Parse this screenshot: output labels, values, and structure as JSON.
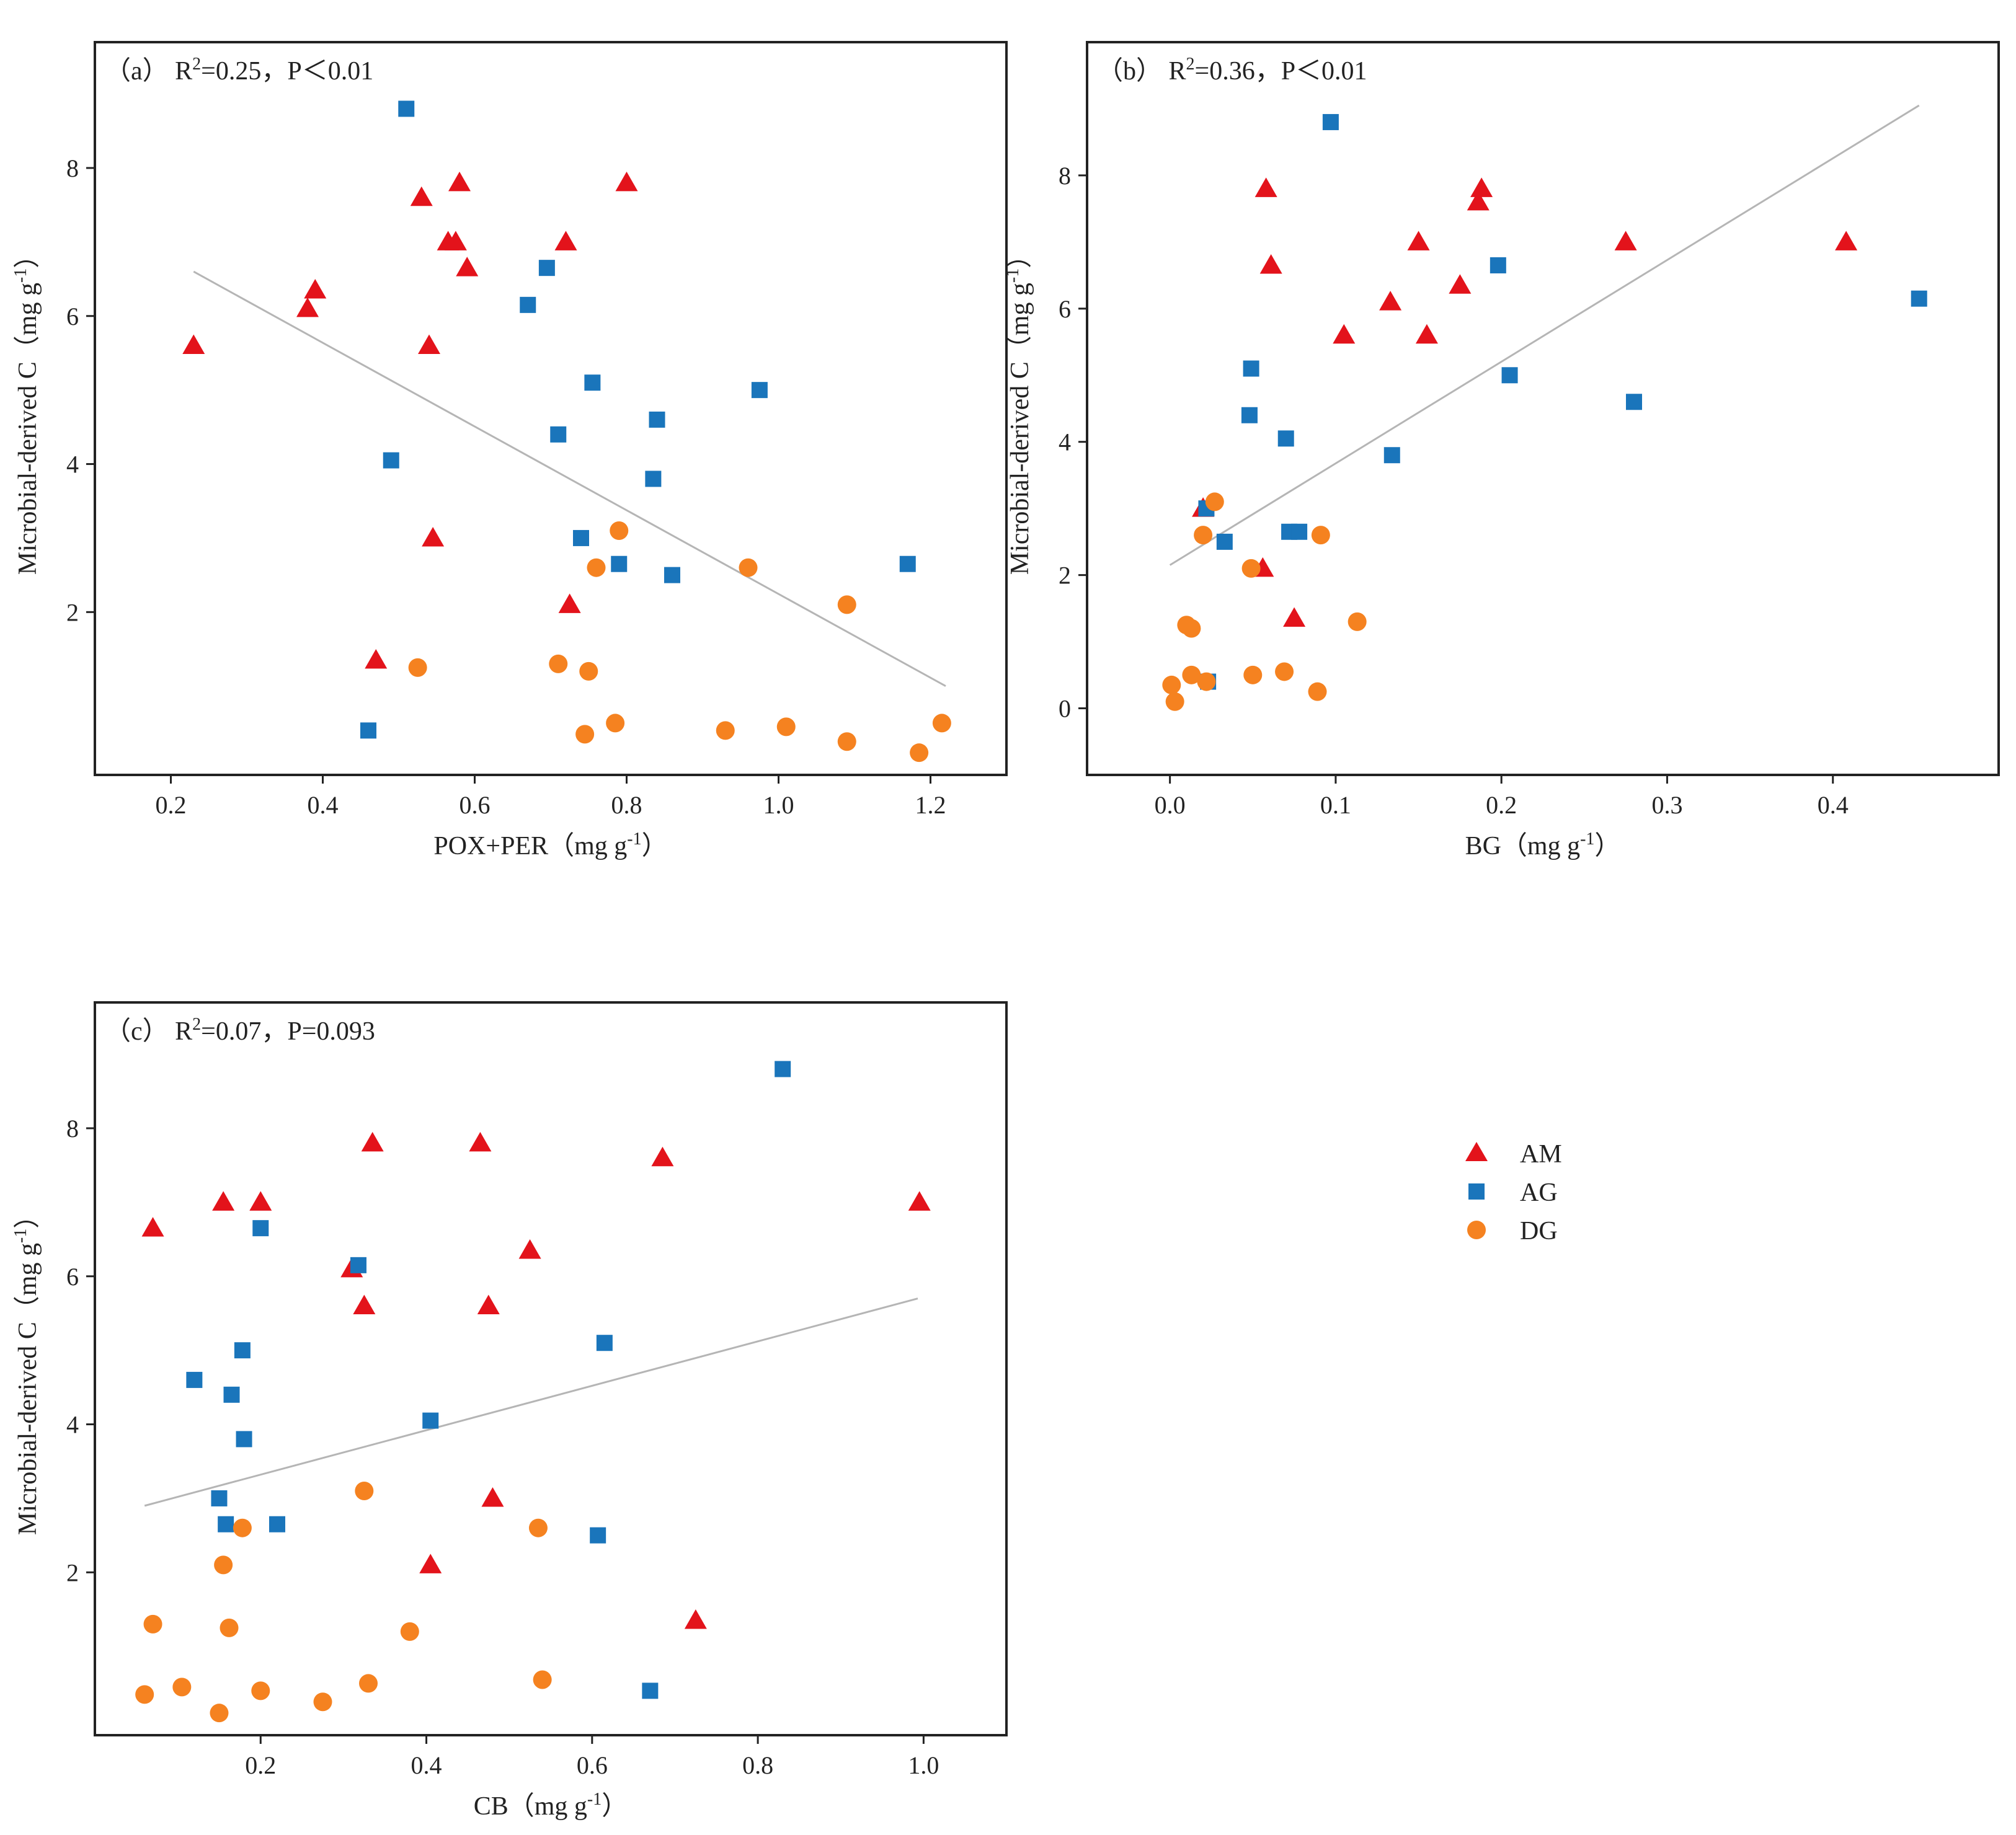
{
  "colors": {
    "AM": "#e3131b",
    "AG": "#1a75bb",
    "DG": "#f58220",
    "fit": "#b5b5b5",
    "frame": "#222222"
  },
  "legend": [
    {
      "key": "AM",
      "label": "AM",
      "marker": "triangle"
    },
    {
      "key": "AG",
      "label": "AG",
      "marker": "square"
    },
    {
      "key": "DG",
      "label": "DG",
      "marker": "circle"
    }
  ],
  "chart_data": [
    {
      "type": "scatter",
      "annotation": {
        "prefix": "（a）  R",
        "sup": "2",
        "suffix": "=0.25，P＜0.01"
      },
      "xlabel": {
        "text": "POX+PER（mg g",
        "sup": "-1",
        "close": "）"
      },
      "ylabel": {
        "text": "Microbial-derived C（mg g",
        "sup": "-1",
        "close": "）"
      },
      "xlim": [
        0.1,
        1.3
      ],
      "ylim": [
        -0.2,
        9.7
      ],
      "xticks": [
        0.2,
        0.4,
        0.6,
        0.8,
        1.0,
        1.2
      ],
      "xtick_labels": [
        "0.2",
        "0.4",
        "0.6",
        "0.8",
        "1.0",
        "1.2"
      ],
      "yticks": [
        2,
        4,
        6,
        8
      ],
      "ytick_labels": [
        "2",
        "4",
        "6",
        "8"
      ],
      "fit": {
        "x": [
          0.23,
          1.22
        ],
        "y": [
          6.6,
          1.0
        ]
      },
      "series": [
        {
          "key": "AM",
          "points": [
            [
              0.23,
              5.6
            ],
            [
              0.38,
              6.1
            ],
            [
              0.39,
              6.35
            ],
            [
              0.47,
              1.35
            ],
            [
              0.53,
              7.6
            ],
            [
              0.54,
              5.6
            ],
            [
              0.545,
              3.0
            ],
            [
              0.565,
              7.0
            ],
            [
              0.575,
              7.0
            ],
            [
              0.58,
              7.8
            ],
            [
              0.59,
              6.65
            ],
            [
              0.72,
              7.0
            ],
            [
              0.725,
              2.1
            ],
            [
              0.8,
              7.8
            ]
          ]
        },
        {
          "key": "AG",
          "points": [
            [
              0.46,
              0.4
            ],
            [
              0.49,
              4.05
            ],
            [
              0.51,
              8.8
            ],
            [
              0.67,
              6.15
            ],
            [
              0.695,
              6.65
            ],
            [
              0.71,
              4.4
            ],
            [
              0.74,
              3.0
            ],
            [
              0.755,
              5.1
            ],
            [
              0.79,
              2.65
            ],
            [
              0.835,
              3.8
            ],
            [
              0.84,
              4.6
            ],
            [
              0.86,
              2.5
            ],
            [
              0.975,
              5.0
            ],
            [
              1.17,
              2.65
            ]
          ]
        },
        {
          "key": "DG",
          "points": [
            [
              0.525,
              1.25
            ],
            [
              0.71,
              1.3
            ],
            [
              0.75,
              1.2
            ],
            [
              0.745,
              0.35
            ],
            [
              0.76,
              2.6
            ],
            [
              0.785,
              0.5
            ],
            [
              0.79,
              3.1
            ],
            [
              0.93,
              0.4
            ],
            [
              0.96,
              2.6
            ],
            [
              1.01,
              0.45
            ],
            [
              1.09,
              0.25
            ],
            [
              1.09,
              2.1
            ],
            [
              1.185,
              0.1
            ],
            [
              1.215,
              0.5
            ]
          ]
        }
      ]
    },
    {
      "type": "scatter",
      "annotation": {
        "prefix": "（b）  R",
        "sup": "2",
        "suffix": "=0.36，P＜0.01"
      },
      "xlabel": {
        "text": "BG（mg g",
        "sup": "-1",
        "close": "）"
      },
      "ylabel": {
        "text": "Microbial-derived C（mg g",
        "sup": "-1",
        "close": "）"
      },
      "xlim": [
        -0.05,
        0.5
      ],
      "ylim": [
        -1.0,
        10.0
      ],
      "xticks": [
        0.0,
        0.1,
        0.2,
        0.3,
        0.4
      ],
      "xtick_labels": [
        "0.0",
        "0.1",
        "0.2",
        "0.3",
        "0.4"
      ],
      "yticks": [
        0,
        2,
        4,
        6,
        8
      ],
      "ytick_labels": [
        "0",
        "2",
        "4",
        "6",
        "8"
      ],
      "fit": {
        "x": [
          0.0,
          0.452
        ],
        "y": [
          2.15,
          9.05
        ]
      },
      "series": [
        {
          "key": "AM",
          "points": [
            [
              0.02,
              3.0
            ],
            [
              0.056,
              2.1
            ],
            [
              0.058,
              7.8
            ],
            [
              0.061,
              6.65
            ],
            [
              0.075,
              1.35
            ],
            [
              0.105,
              5.6
            ],
            [
              0.133,
              6.1
            ],
            [
              0.15,
              7.0
            ],
            [
              0.155,
              5.6
            ],
            [
              0.175,
              6.35
            ],
            [
              0.186,
              7.6
            ],
            [
              0.188,
              7.8
            ],
            [
              0.275,
              7.0
            ],
            [
              0.408,
              7.0
            ]
          ]
        },
        {
          "key": "AG",
          "points": [
            [
              0.022,
              3.0
            ],
            [
              0.023,
              0.4
            ],
            [
              0.033,
              2.5
            ],
            [
              0.048,
              4.4
            ],
            [
              0.049,
              5.1
            ],
            [
              0.07,
              4.05
            ],
            [
              0.072,
              2.65
            ],
            [
              0.078,
              2.65
            ],
            [
              0.097,
              8.8
            ],
            [
              0.134,
              3.8
            ],
            [
              0.198,
              6.65
            ],
            [
              0.205,
              5.0
            ],
            [
              0.28,
              4.6
            ],
            [
              0.452,
              6.15
            ]
          ]
        },
        {
          "key": "DG",
          "points": [
            [
              0.001,
              0.35
            ],
            [
              0.003,
              0.1
            ],
            [
              0.01,
              1.25
            ],
            [
              0.013,
              1.2
            ],
            [
              0.013,
              0.5
            ],
            [
              0.02,
              2.6
            ],
            [
              0.022,
              0.4
            ],
            [
              0.027,
              3.1
            ],
            [
              0.049,
              2.1
            ],
            [
              0.05,
              0.5
            ],
            [
              0.069,
              0.55
            ],
            [
              0.089,
              0.25
            ],
            [
              0.091,
              2.6
            ],
            [
              0.113,
              1.3
            ]
          ]
        }
      ]
    },
    {
      "type": "scatter",
      "annotation": {
        "prefix": "（c）  R",
        "sup": "2",
        "suffix": "=0.07，P=0.093"
      },
      "xlabel": {
        "text": "CB（mg g",
        "sup": "-1",
        "close": "）"
      },
      "ylabel": {
        "text": "Microbial-derived C（mg g",
        "sup": "-1",
        "close": "）"
      },
      "xlim": [
        0.0,
        1.1
      ],
      "ylim": [
        -0.2,
        9.7
      ],
      "xticks": [
        0.2,
        0.4,
        0.6,
        0.8,
        1.0
      ],
      "xtick_labels": [
        "0.2",
        "0.4",
        "0.6",
        "0.8",
        "1.0"
      ],
      "yticks": [
        2,
        4,
        6,
        8
      ],
      "ytick_labels": [
        "2",
        "4",
        "6",
        "8"
      ],
      "fit": {
        "x": [
          0.06,
          0.993
        ],
        "y": [
          2.9,
          5.7
        ]
      },
      "series": [
        {
          "key": "AM",
          "points": [
            [
              0.07,
              6.65
            ],
            [
              0.155,
              7.0
            ],
            [
              0.2,
              7.0
            ],
            [
              0.31,
              6.1
            ],
            [
              0.325,
              5.6
            ],
            [
              0.335,
              7.8
            ],
            [
              0.405,
              2.1
            ],
            [
              0.465,
              7.8
            ],
            [
              0.475,
              5.6
            ],
            [
              0.48,
              3.0
            ],
            [
              0.525,
              6.35
            ],
            [
              0.685,
              7.6
            ],
            [
              0.725,
              1.35
            ],
            [
              0.995,
              7.0
            ]
          ]
        },
        {
          "key": "AG",
          "points": [
            [
              0.12,
              4.6
            ],
            [
              0.15,
              3.0
            ],
            [
              0.158,
              2.65
            ],
            [
              0.165,
              4.4
            ],
            [
              0.178,
              5.0
            ],
            [
              0.18,
              3.8
            ],
            [
              0.2,
              6.65
            ],
            [
              0.22,
              2.65
            ],
            [
              0.318,
              6.15
            ],
            [
              0.405,
              4.05
            ],
            [
              0.607,
              2.5
            ],
            [
              0.615,
              5.1
            ],
            [
              0.67,
              0.4
            ],
            [
              0.83,
              8.8
            ]
          ]
        },
        {
          "key": "DG",
          "points": [
            [
              0.06,
              0.35
            ],
            [
              0.07,
              1.3
            ],
            [
              0.105,
              0.45
            ],
            [
              0.15,
              0.1
            ],
            [
              0.155,
              2.1
            ],
            [
              0.162,
              1.25
            ],
            [
              0.178,
              2.6
            ],
            [
              0.2,
              0.4
            ],
            [
              0.275,
              0.25
            ],
            [
              0.325,
              3.1
            ],
            [
              0.33,
              0.5
            ],
            [
              0.38,
              1.2
            ],
            [
              0.535,
              2.6
            ],
            [
              0.54,
              0.55
            ]
          ]
        }
      ]
    }
  ]
}
